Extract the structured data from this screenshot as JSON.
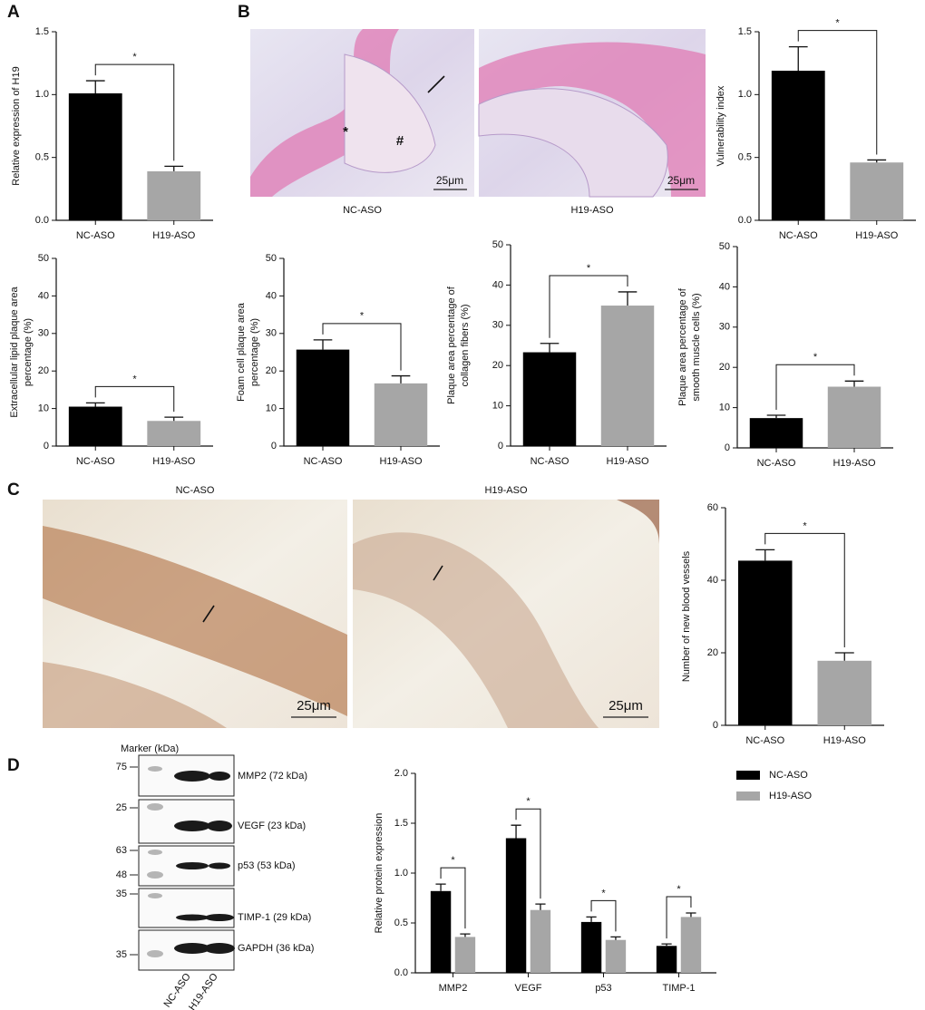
{
  "panel_labels": [
    "A",
    "B",
    "C",
    "D"
  ],
  "micrographs": [
    {
      "caption": "NC-ASO",
      "scale": "25μm",
      "annotations": [
        "*",
        "#"
      ]
    },
    {
      "caption": "H19-ASO",
      "scale": "25μm"
    },
    {
      "caption": "NC-ASO",
      "scale": "25μm"
    },
    {
      "caption": "H19-ASO",
      "scale": "25μm"
    }
  ],
  "western_blot": {
    "title": "Marker (kDa)",
    "blots": [
      {
        "label": "MMP2 (72 kDa)",
        "markers": [
          75
        ]
      },
      {
        "label": "VEGF (23 kDa)",
        "markers": [
          25
        ]
      },
      {
        "label": "p53 (53 kDa)",
        "markers": [
          63,
          48
        ]
      },
      {
        "label": "TIMP-1 (29 kDa)",
        "markers": [
          35
        ]
      },
      {
        "label": "GAPDH (36 kDa)",
        "markers": [
          35
        ]
      }
    ],
    "lanes": [
      "NC-ASO",
      "H19-ASO"
    ]
  },
  "chart_data": [
    {
      "type": "bar",
      "ylabel": [
        "Relative expression of H19"
      ],
      "categories": [
        "NC-ASO",
        "H19-ASO"
      ],
      "values": [
        1.01,
        0.39
      ],
      "errors": [
        0.1,
        0.04
      ],
      "colors": [
        "#000000",
        "#a6a6a6"
      ],
      "ylim": [
        0,
        1.5
      ],
      "yticks": [
        {
          "value": 0,
          "label": "0.0"
        },
        0.5,
        {
          "value": 1,
          "label": "1.0"
        },
        1.5
      ],
      "annotations": [
        "*"
      ]
    },
    {
      "type": "bar",
      "ylabel": [
        "Vulnerability index"
      ],
      "categories": [
        "NC-ASO",
        "H19-ASO"
      ],
      "values": [
        1.19,
        0.46
      ],
      "errors": [
        0.19,
        0.02
      ],
      "colors": [
        "#000000",
        "#a6a6a6"
      ],
      "ylim": [
        0,
        1.5
      ],
      "yticks": [
        {
          "value": 0,
          "label": "0.0"
        },
        0.5,
        {
          "value": 1,
          "label": "1.0"
        },
        1.5
      ],
      "annotations": [
        "*"
      ]
    },
    {
      "type": "bar",
      "ylabel": [
        "Extracellular lipid plaque area",
        "percentage (%)"
      ],
      "categories": [
        "NC-ASO",
        "H19-ASO"
      ],
      "values": [
        10.5,
        6.7
      ],
      "errors": [
        1,
        1
      ],
      "colors": [
        "#000000",
        "#a6a6a6"
      ],
      "ylim": [
        0,
        50
      ],
      "yticks": [
        0,
        10,
        20,
        30,
        40,
        50
      ],
      "annotations": [
        "*"
      ]
    },
    {
      "type": "bar",
      "ylabel": [
        "Foam cell plaque area",
        "percentage (%)"
      ],
      "categories": [
        "NC-ASO",
        "H19-ASO"
      ],
      "values": [
        25.7,
        16.7
      ],
      "errors": [
        2.6,
        2
      ],
      "colors": [
        "#000000",
        "#a6a6a6"
      ],
      "ylim": [
        0,
        50
      ],
      "yticks": [
        0,
        10,
        20,
        30,
        40,
        50
      ],
      "annotations": [
        "*"
      ]
    },
    {
      "type": "bar",
      "ylabel": [
        "Plaque area percentage of",
        "collagen fibers (%)"
      ],
      "categories": [
        "NC-ASO",
        "H19-ASO"
      ],
      "values": [
        23.3,
        34.9
      ],
      "errors": [
        2.2,
        3.4
      ],
      "colors": [
        "#000000",
        "#a6a6a6"
      ],
      "ylim": [
        0,
        50
      ],
      "yticks": [
        0,
        10,
        20,
        30,
        40,
        50
      ],
      "annotations": [
        "*"
      ]
    },
    {
      "type": "bar",
      "ylabel": [
        "Plaque area percentage of",
        "smooth muscle cells (%)"
      ],
      "categories": [
        "NC-ASO",
        "H19-ASO"
      ],
      "values": [
        7.4,
        15.2
      ],
      "errors": [
        0.7,
        1.4
      ],
      "colors": [
        "#000000",
        "#a6a6a6"
      ],
      "ylim": [
        0,
        50
      ],
      "yticks": [
        0,
        10,
        20,
        30,
        40,
        50
      ],
      "annotations": [
        "*"
      ]
    },
    {
      "type": "bar",
      "ylabel": [
        "Number of new blood vessels"
      ],
      "categories": [
        "NC-ASO",
        "H19-ASO"
      ],
      "values": [
        45.4,
        17.8
      ],
      "errors": [
        3,
        2.2
      ],
      "colors": [
        "#000000",
        "#a6a6a6"
      ],
      "ylim": [
        0,
        60
      ],
      "yticks": [
        0,
        20,
        40,
        60
      ],
      "annotations": [
        "*"
      ]
    },
    {
      "type": "grouped_bar",
      "ylabel": [
        "Relative protein expression"
      ],
      "categories": [
        "MMP2",
        "VEGF",
        "p53",
        "TIMP-1"
      ],
      "series": [
        {
          "name": "NC-ASO",
          "color": "#000000",
          "values": [
            0.82,
            1.35,
            0.51,
            0.27
          ],
          "errors": [
            0.07,
            0.13,
            0.05,
            0.02
          ]
        },
        {
          "name": "H19-ASO",
          "color": "#a6a6a6",
          "values": [
            0.36,
            0.63,
            0.33,
            0.56
          ],
          "errors": [
            0.03,
            0.06,
            0.03,
            0.04
          ]
        }
      ],
      "ylim": [
        0,
        2
      ],
      "yticks": [
        {
          "value": 0,
          "label": "0.0"
        },
        0.5,
        {
          "value": 1,
          "label": "1.0"
        },
        1.5,
        {
          "value": 2,
          "label": "2.0"
        }
      ],
      "annotations": [
        "*",
        "*",
        "*",
        "*"
      ],
      "legend": "right"
    }
  ]
}
